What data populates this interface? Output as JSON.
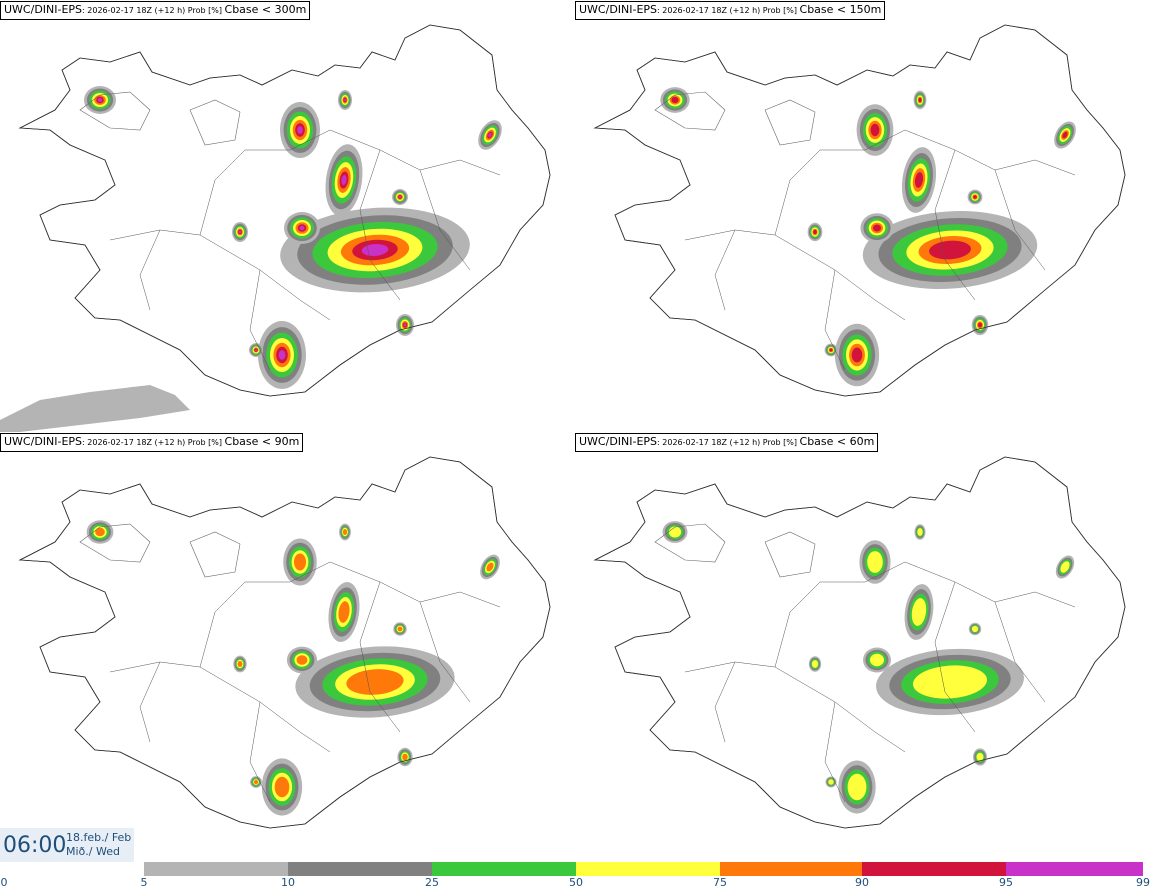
{
  "panels": [
    {
      "model": "UWC/DINI-EPS",
      "meta": ": 2026-02-17 18Z (+12 h) Prob [%] ",
      "field": "Cbase < 300m",
      "intensity": 1.0
    },
    {
      "model": "UWC/DINI-EPS",
      "meta": ": 2026-02-17 18Z (+12 h) Prob [%] ",
      "field": "Cbase < 150m",
      "intensity": 0.8
    },
    {
      "model": "UWC/DINI-EPS",
      "meta": ": 2026-02-17 18Z (+12 h) Prob [%] ",
      "field": "Cbase < 90m",
      "intensity": 0.6
    },
    {
      "model": "UWC/DINI-EPS",
      "meta": ": 2026-02-17 18Z (+12 h) Prob [%] ",
      "field": "Cbase < 60m",
      "intensity": 0.45
    }
  ],
  "time": {
    "hour": "06:00",
    "date": "18.feb./ Feb",
    "day": "Mið./ Wed"
  },
  "legend": {
    "ticks": [
      "0",
      "5",
      "10",
      "25",
      "50",
      "75",
      "90",
      "95",
      "99"
    ],
    "colors": [
      "#ffffff",
      "#b4b4b4",
      "#808080",
      "#3cc83c",
      "#ffff3c",
      "#ff780a",
      "#d2143c",
      "#c832c8",
      "#f0b4f0"
    ]
  }
}
